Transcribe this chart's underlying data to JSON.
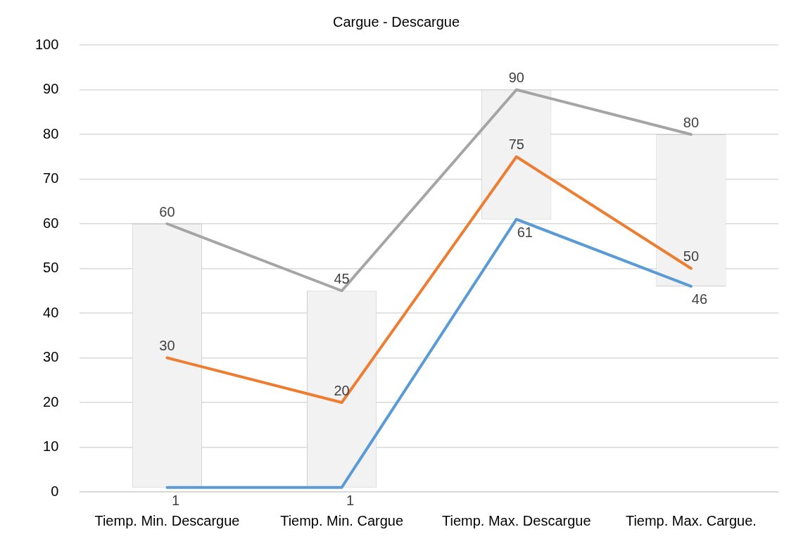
{
  "chart_data": {
    "type": "line",
    "title": "Cargue - Descargue",
    "categories": [
      "Tiemp. Min. Descargue",
      "Tiemp. Min. Cargue",
      "Tiemp. Max. Descargue",
      "Tiemp. Max. Cargue."
    ],
    "series": [
      {
        "type": "bar",
        "color": "#f2f2f2",
        "base": [
          1,
          1,
          61,
          46
        ],
        "values": [
          59,
          44,
          29,
          34
        ]
      },
      {
        "color": "#5b9bd5",
        "values": [
          1,
          1,
          61,
          46
        ],
        "value_labels": [
          "1",
          "1",
          "61",
          "46"
        ]
      },
      {
        "color": "#ed7d31",
        "values": [
          30,
          20,
          75,
          50
        ],
        "value_labels": [
          "30",
          "20",
          "75",
          "50"
        ]
      },
      {
        "color": "#a5a5a5",
        "values": [
          60,
          45,
          90,
          80
        ],
        "value_labels": [
          "60",
          "45",
          "90",
          "80"
        ]
      }
    ],
    "ylim": [
      0,
      100
    ],
    "yticks": [
      0,
      10,
      20,
      30,
      40,
      50,
      60,
      70,
      80,
      90,
      100
    ],
    "grid": "y",
    "marker": "none",
    "legend": false
  }
}
